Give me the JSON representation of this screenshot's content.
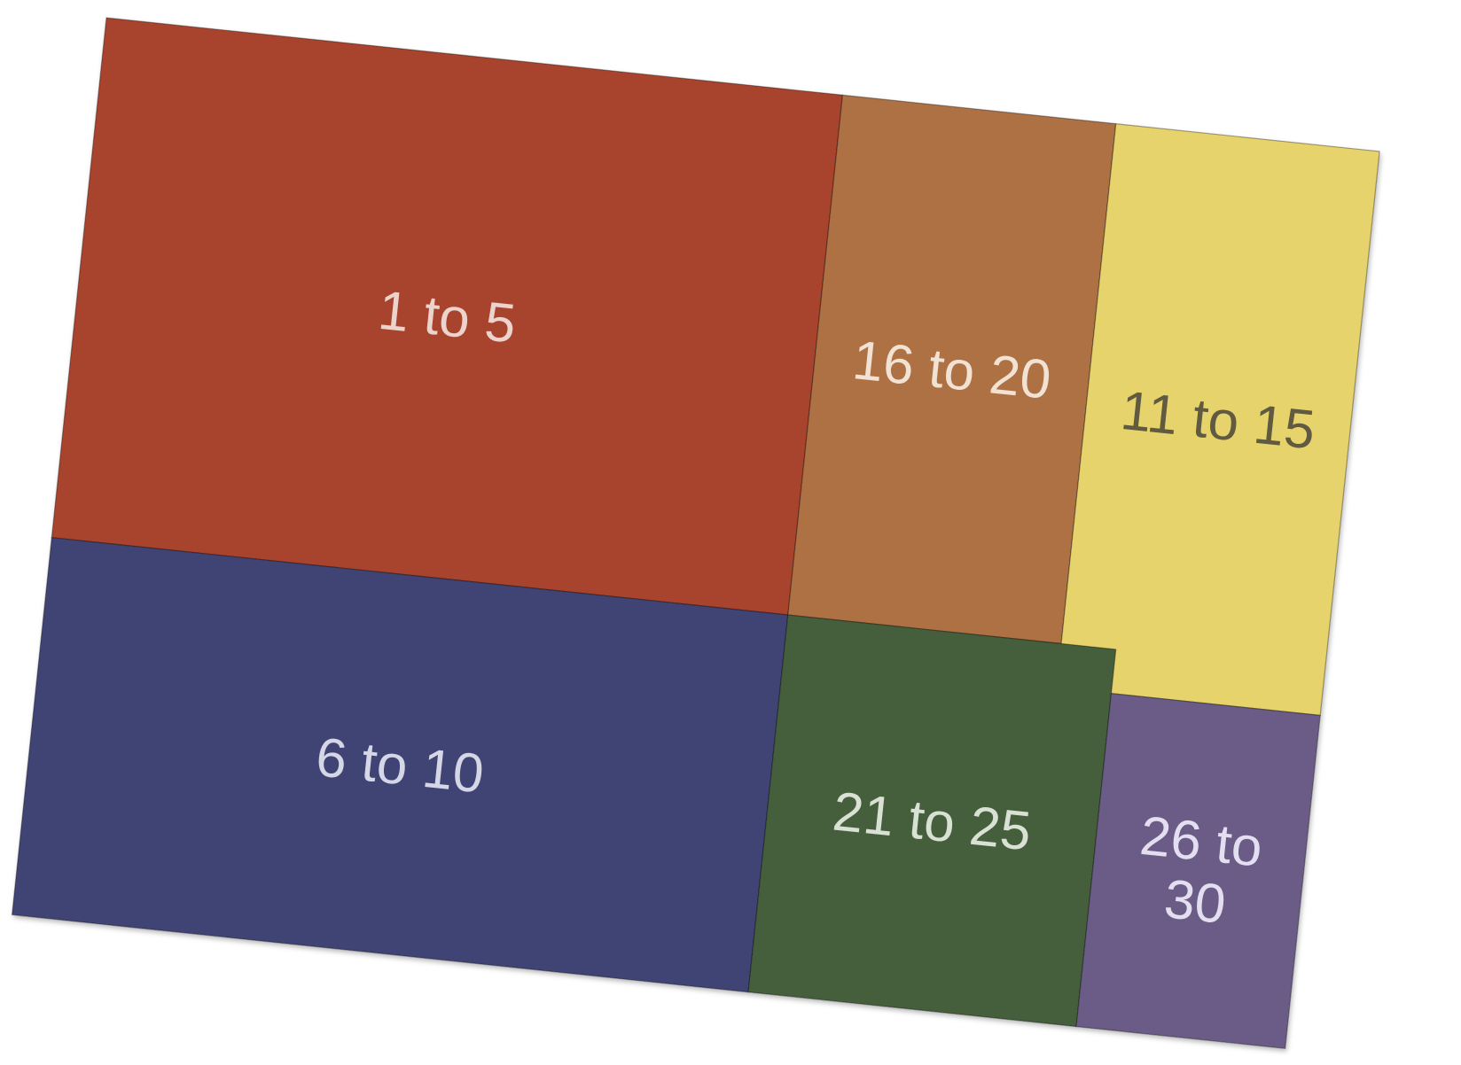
{
  "chart_data": {
    "type": "treemap",
    "tiles": [
      {
        "label": "1 to 5",
        "label_lines": [
          "1 to 5"
        ],
        "color": "#a8432d",
        "text_color": "#ecd3cb"
      },
      {
        "label": "6 to 10",
        "label_lines": [
          "6 to 10"
        ],
        "color": "#3f4474",
        "text_color": "#d6d7e6"
      },
      {
        "label": "16 to 20",
        "label_lines": [
          "16 to 20"
        ],
        "color": "#ae7143",
        "text_color": "#f1e2d4"
      },
      {
        "label": "11 to 15",
        "label_lines": [
          "11 to 15"
        ],
        "color": "#e7d36c",
        "text_color": "#5f5a40"
      },
      {
        "label": "21 to 25",
        "label_lines": [
          "21 to 25"
        ],
        "color": "#455e3c",
        "text_color": "#d8e1d3"
      },
      {
        "label": "26 to 30",
        "label_lines": [
          "26 to",
          "30"
        ],
        "color": "#6a5c86",
        "text_color": "#e4dff0"
      }
    ]
  }
}
